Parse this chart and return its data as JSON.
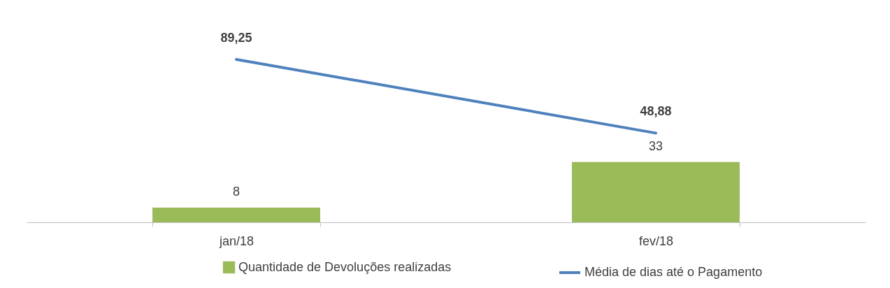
{
  "chart_data": {
    "type": "bar",
    "categories": [
      "jan/18",
      "fev/18"
    ],
    "series": [
      {
        "name": "Quantidade de Devoluções realizadas",
        "color": "#9bbb59",
        "values": [
          8,
          33
        ],
        "value_labels": [
          "8",
          "33"
        ]
      },
      {
        "name": "Média de dias até o Pagamento",
        "type": "line",
        "color": "#4f81bd",
        "values": [
          89.25,
          48.88
        ],
        "value_labels": [
          "89,25",
          "48,88"
        ]
      }
    ],
    "legend": "bottom",
    "tick_labels": "x"
  }
}
